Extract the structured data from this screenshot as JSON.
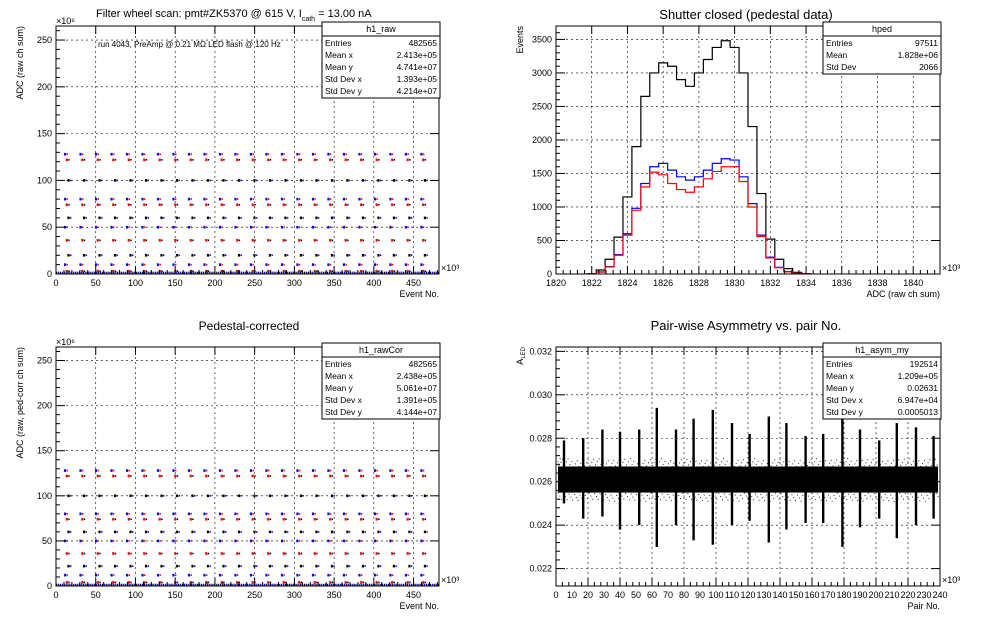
{
  "chart_data": [
    {
      "id": "h1_raw",
      "type": "scatter",
      "title": "Filter wheel scan: pmt#ZK5370 @   615 V, I",
      "title_sub": "cath",
      "title_tail": " = 13.00 nA",
      "annotation": "run 4043, PreAmp @ 0.21 MΩ LED flash @  120 Hz",
      "xlabel": "Event No.",
      "ylabel": "ADC (raw ch sum)",
      "x_multiplier": "×10³",
      "y_multiplier": "×10⁶",
      "xlim": [
        0,
        482
      ],
      "ylim": [
        0,
        265
      ],
      "xticks": [
        0,
        50,
        100,
        150,
        200,
        250,
        300,
        350,
        400,
        450
      ],
      "yticks": [
        0,
        50,
        100,
        150,
        200,
        250
      ],
      "grid": true,
      "stats": {
        "name": "h1_raw",
        "rows": [
          [
            "Entries",
            "482565"
          ],
          [
            "Mean x",
            "2.413e+05"
          ],
          [
            "Mean y",
            "4.741e+07"
          ],
          [
            "Std Dev x",
            "1.393e+05"
          ],
          [
            "Std Dev y",
            "4.214e+07"
          ]
        ]
      },
      "levels": [
        128,
        122,
        100,
        80,
        74,
        60,
        50,
        36,
        20,
        10,
        3
      ],
      "period": 19.5,
      "x_start": 10,
      "series_colors": [
        "#0000ff",
        "#ff0000",
        "#000000"
      ]
    },
    {
      "id": "hped",
      "type": "step",
      "title": "Shutter closed (pedestal data)",
      "xlabel": "ADC (raw ch sum)",
      "ylabel": "Events",
      "x_multiplier": "×10³",
      "xlim": [
        1820,
        1841.5
      ],
      "ylim": [
        0,
        3700
      ],
      "xticks": [
        1820,
        1822,
        1824,
        1826,
        1828,
        1830,
        1832,
        1834,
        1836,
        1838,
        1840
      ],
      "yticks": [
        0,
        500,
        1000,
        1500,
        2000,
        2500,
        3000,
        3500
      ],
      "grid": true,
      "stats": {
        "name": "hped",
        "rows": [
          [
            "Entries",
            "97511"
          ],
          [
            "Mean",
            "1.828e+06"
          ],
          [
            "Std Dev",
            "2066"
          ]
        ]
      },
      "x": [
        1822.0,
        1822.5,
        1823.0,
        1823.5,
        1824.0,
        1824.5,
        1825.0,
        1825.5,
        1826.0,
        1826.5,
        1827.0,
        1827.5,
        1828.0,
        1828.5,
        1829.0,
        1829.5,
        1830.0,
        1830.5,
        1831.0,
        1831.5,
        1832.0,
        1832.5,
        1833.0,
        1833.5,
        1834.0
      ],
      "series": [
        {
          "color": "#000000",
          "values": [
            5,
            60,
            220,
            550,
            1150,
            1900,
            2650,
            3000,
            3150,
            3100,
            2900,
            2800,
            3000,
            3200,
            3380,
            3480,
            3380,
            3000,
            2200,
            1200,
            520,
            220,
            80,
            25,
            5
          ]
        },
        {
          "color": "#0000ff",
          "values": [
            3,
            30,
            110,
            290,
            600,
            980,
            1350,
            1600,
            1650,
            1550,
            1450,
            1400,
            1450,
            1550,
            1650,
            1720,
            1700,
            1450,
            1050,
            580,
            250,
            100,
            35,
            10,
            2
          ]
        },
        {
          "color": "#ff0000",
          "values": [
            3,
            30,
            105,
            280,
            580,
            950,
            1300,
            1520,
            1480,
            1350,
            1260,
            1220,
            1300,
            1420,
            1530,
            1600,
            1600,
            1380,
            1000,
            560,
            240,
            95,
            32,
            10,
            2
          ]
        }
      ]
    },
    {
      "id": "h1_rawCor",
      "type": "scatter",
      "title": "Pedestal-corrected",
      "xlabel": "Event No.",
      "ylabel": "ADC (raw, ped-corr ch sum)",
      "x_multiplier": "×10³",
      "y_multiplier": "×10⁶",
      "xlim": [
        0,
        482
      ],
      "ylim": [
        0,
        265
      ],
      "xticks": [
        0,
        50,
        100,
        150,
        200,
        250,
        300,
        350,
        400,
        450
      ],
      "yticks": [
        0,
        50,
        100,
        150,
        200,
        250
      ],
      "grid": true,
      "stats": {
        "name": "h1_rawCor",
        "rows": [
          [
            "Entries",
            "482565"
          ],
          [
            "Mean x",
            "2.438e+05"
          ],
          [
            "Mean y",
            "5.061e+07"
          ],
          [
            "Std Dev x",
            "1.391e+05"
          ],
          [
            "Std Dev y",
            "4.144e+07"
          ]
        ]
      },
      "levels": [
        128,
        122,
        100,
        80,
        74,
        60,
        50,
        36,
        22,
        12,
        4
      ],
      "period": 19.5,
      "x_start": 10,
      "series_colors": [
        "#0000ff",
        "#ff0000",
        "#000000"
      ]
    },
    {
      "id": "h1_asym_my",
      "type": "scatter",
      "title": "Pair-wise Asymmetry vs. pair No.",
      "xlabel": "Pair No.",
      "ylabel": "A",
      "ylabel_sub": "LED",
      "x_multiplier": "×10³",
      "xlim": [
        0,
        240
      ],
      "ylim": [
        0.0212,
        0.0322
      ],
      "xticks": [
        0,
        20,
        40,
        60,
        80,
        100,
        120,
        140,
        160,
        180,
        200,
        220,
        240
      ],
      "xtick_minor": [
        10,
        30,
        50,
        70,
        90,
        110,
        130,
        150,
        170,
        190,
        210,
        230
      ],
      "yticks": [
        0.022,
        0.024,
        0.026,
        0.028,
        0.03,
        0.032
      ],
      "grid": true,
      "stats": {
        "name": "h1_asym_my",
        "rows": [
          [
            "Entries",
            "192514"
          ],
          [
            "Mean x",
            "1.209e+05"
          ],
          [
            "Mean y",
            "0.02631"
          ],
          [
            "Std Dev x",
            "6.947e+04"
          ],
          [
            "Std Dev y",
            "0.0005013"
          ]
        ]
      },
      "band": [
        0.0255,
        0.0267
      ],
      "spikes": [
        {
          "x": 5,
          "top": 0.0279,
          "bot": 0.025
        },
        {
          "x": 17,
          "top": 0.028,
          "bot": 0.0243
        },
        {
          "x": 29,
          "top": 0.0284,
          "bot": 0.0244
        },
        {
          "x": 40,
          "top": 0.0283,
          "bot": 0.0238
        },
        {
          "x": 52,
          "top": 0.0284,
          "bot": 0.024
        },
        {
          "x": 63,
          "top": 0.0294,
          "bot": 0.023
        },
        {
          "x": 75,
          "top": 0.0284,
          "bot": 0.024
        },
        {
          "x": 86,
          "top": 0.0289,
          "bot": 0.0233
        },
        {
          "x": 98,
          "top": 0.0293,
          "bot": 0.0231
        },
        {
          "x": 110,
          "top": 0.0287,
          "bot": 0.024
        },
        {
          "x": 121,
          "top": 0.0282,
          "bot": 0.0242
        },
        {
          "x": 133,
          "top": 0.029,
          "bot": 0.0232
        },
        {
          "x": 144,
          "top": 0.0287,
          "bot": 0.0238
        },
        {
          "x": 156,
          "top": 0.0281,
          "bot": 0.0241
        },
        {
          "x": 167,
          "top": 0.0282,
          "bot": 0.0241
        },
        {
          "x": 179,
          "top": 0.0292,
          "bot": 0.023
        },
        {
          "x": 190,
          "top": 0.0284,
          "bot": 0.0239
        },
        {
          "x": 202,
          "top": 0.0279,
          "bot": 0.0243
        },
        {
          "x": 213,
          "top": 0.0287,
          "bot": 0.0234
        },
        {
          "x": 225,
          "top": 0.0285,
          "bot": 0.024
        },
        {
          "x": 236,
          "top": 0.0281,
          "bot": 0.0243
        }
      ]
    }
  ]
}
